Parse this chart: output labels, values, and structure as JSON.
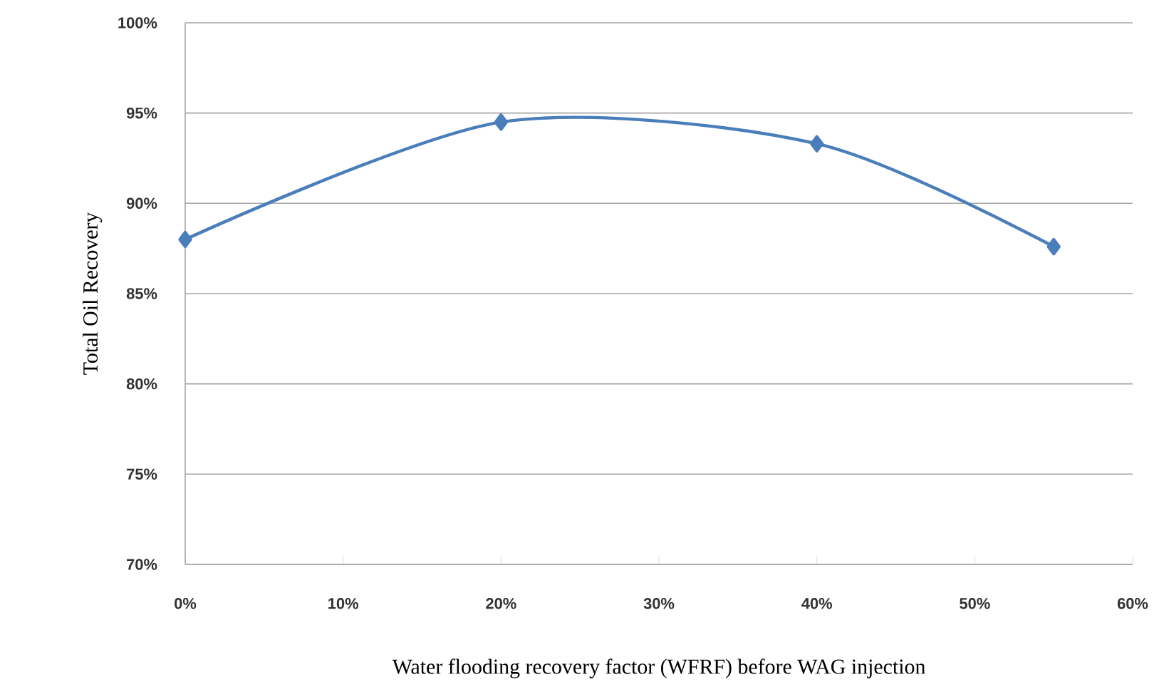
{
  "chart_data": {
    "type": "line",
    "xlabel": "Water flooding recovery factor (WFRF) before WAG injection",
    "ylabel": "Total Oil Recovery",
    "x": [
      0,
      20,
      40,
      55
    ],
    "series": [
      {
        "color": "#4a7ebb",
        "values": [
          88.0,
          94.5,
          93.3,
          87.6
        ]
      }
    ],
    "xlim": [
      0,
      60
    ],
    "xticks": [
      {
        "value": 0,
        "label": "0%"
      },
      {
        "value": 10,
        "label": "10%"
      },
      {
        "value": 20,
        "label": "20%"
      },
      {
        "value": 30,
        "label": "30%"
      },
      {
        "value": 40,
        "label": "40%"
      },
      {
        "value": 50,
        "label": "50%"
      },
      {
        "value": 60,
        "label": "60%"
      }
    ],
    "ylim": [
      70,
      100
    ],
    "yticks": [
      {
        "value": 70,
        "label": "70%"
      },
      {
        "value": 75,
        "label": "75%"
      },
      {
        "value": 80,
        "label": "80%"
      },
      {
        "value": 85,
        "label": "85%"
      },
      {
        "value": 90,
        "label": "90%"
      },
      {
        "value": 95,
        "label": "95%"
      },
      {
        "value": 100,
        "label": "100%"
      }
    ],
    "grid": "y",
    "marker": "diamond",
    "line_style": "solid"
  }
}
